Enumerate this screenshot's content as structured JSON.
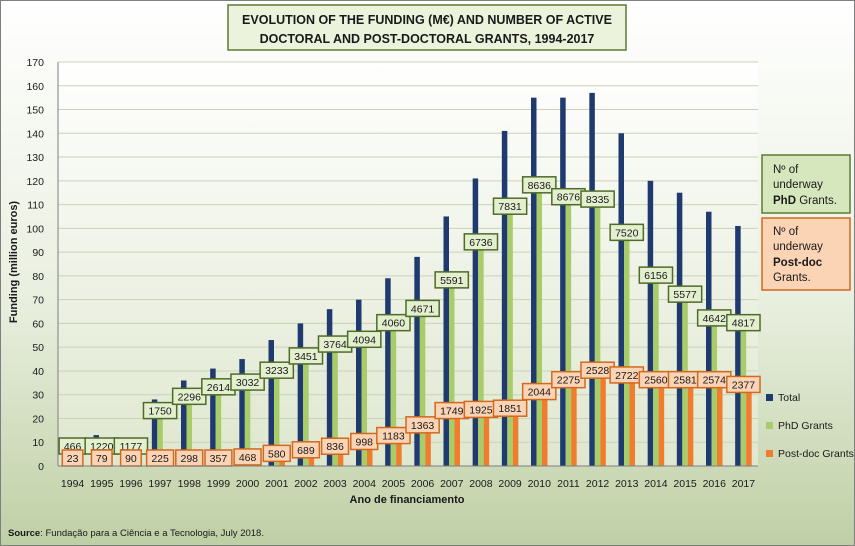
{
  "chart_data": {
    "type": "bar",
    "title_line1": "EVOLUTION OF THE FUNDING (M€) AND NUMBER OF ACTIVE",
    "title_line2": "DOCTORAL AND POST-DOCTORAL GRANTS, 1994-2017",
    "ylabel": "Funding (million euros)",
    "xlabel": "Ano de financiamento",
    "ylim": [
      0,
      170
    ],
    "yticks": [
      0,
      10,
      20,
      30,
      40,
      50,
      60,
      70,
      80,
      90,
      100,
      110,
      120,
      130,
      140,
      150,
      160,
      170
    ],
    "grid": true,
    "categories": [
      "1994",
      "1995",
      "1996",
      "1997",
      "1998",
      "1999",
      "2000",
      "2001",
      "2002",
      "2003",
      "2004",
      "2005",
      "2006",
      "2007",
      "2008",
      "2009",
      "2010",
      "2011",
      "2012",
      "2013",
      "2014",
      "2015",
      "2016",
      "2017"
    ],
    "series": [
      {
        "name": "Total",
        "color": "#1f3a6e",
        "values": [
          2,
          13,
          11,
          28,
          36,
          41,
          45,
          53,
          60,
          66,
          70,
          79,
          88,
          105,
          121,
          141,
          155,
          155,
          157,
          140,
          120,
          115,
          107,
          101
        ]
      },
      {
        "name": "PhD Grants",
        "color": "#a9cc6b",
        "values": [
          2,
          10,
          9,
          25,
          31,
          35,
          37,
          42,
          48,
          53,
          55,
          62,
          68,
          80,
          96,
          111,
          120,
          115,
          114,
          100,
          82,
          74,
          64,
          62
        ]
      },
      {
        "name": "Post-doc Grants",
        "color": "#f07d2e",
        "values": [
          0.3,
          1.5,
          1.5,
          3,
          4,
          4.5,
          5.5,
          7,
          8.5,
          10,
          12,
          14.5,
          19,
          25,
          25.5,
          26,
          33,
          38,
          42,
          40,
          38,
          38,
          38,
          36
        ]
      }
    ],
    "phd_grant_labels": [
      "466",
      "1220",
      "1177",
      "1750",
      "2296",
      "2614",
      "3032",
      "3233",
      "3451",
      "3764",
      "4094",
      "4060",
      "4671",
      "5591",
      "6736",
      "7831",
      "8636",
      "8676",
      "8335",
      "7520",
      "6156",
      "5577",
      "4642",
      "4817"
    ],
    "postdoc_grant_labels": [
      "23",
      "79",
      "90",
      "225",
      "298",
      "357",
      "468",
      "580",
      "689",
      "836",
      "998",
      "1183",
      "1363",
      "1749",
      "1925",
      "1851",
      "2044",
      "2275",
      "2528",
      "2722",
      "2560",
      "2581",
      "2574",
      "2377"
    ],
    "legend_position": "bottom-right",
    "phd_note": {
      "line1": "Nº of",
      "line2": "underway",
      "bold": "PhD",
      "rest": " Grants."
    },
    "postdoc_note": {
      "line1": "Nº of",
      "line2": "underway",
      "bold": "Post-doc",
      "rest": "Grants."
    },
    "source_label": "Source",
    "source_text": ": Fundação para a Ciência e a Tecnologia, July 2018."
  }
}
